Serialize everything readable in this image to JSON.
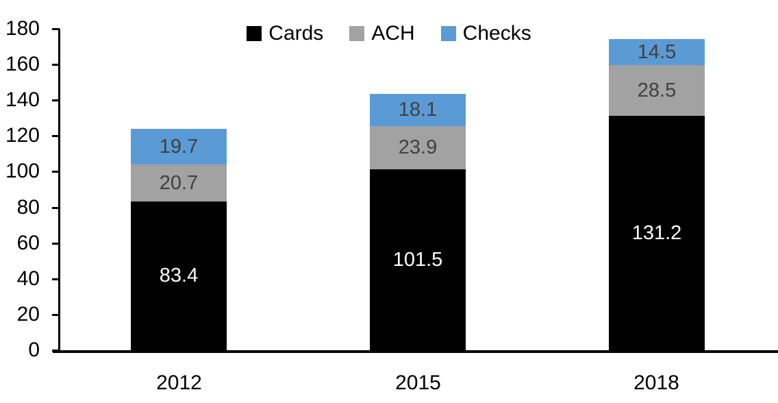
{
  "chart_data": {
    "type": "bar",
    "stacked": true,
    "title": "",
    "xlabel": "",
    "ylabel": "",
    "categories": [
      "2012",
      "2015",
      "2018"
    ],
    "series": [
      {
        "name": "Cards",
        "color": "#000000",
        "label_color": "#ffffff",
        "values": [
          83.4,
          101.5,
          131.2
        ]
      },
      {
        "name": "ACH",
        "color": "#a2a2a2",
        "label_color": "#404040",
        "values": [
          20.7,
          23.9,
          28.5
        ]
      },
      {
        "name": "Checks",
        "color": "#5b9bd5",
        "label_color": "#404040",
        "values": [
          19.7,
          18.1,
          14.5
        ]
      }
    ],
    "totals": [
      123.8,
      143.5,
      174.2
    ],
    "ylim": [
      0,
      180
    ],
    "yticks": [
      0,
      20,
      40,
      60,
      80,
      100,
      120,
      140,
      160,
      180
    ],
    "grid": false,
    "legend_position": "top",
    "axis_color": "#000000",
    "background_color": "#ffffff"
  }
}
